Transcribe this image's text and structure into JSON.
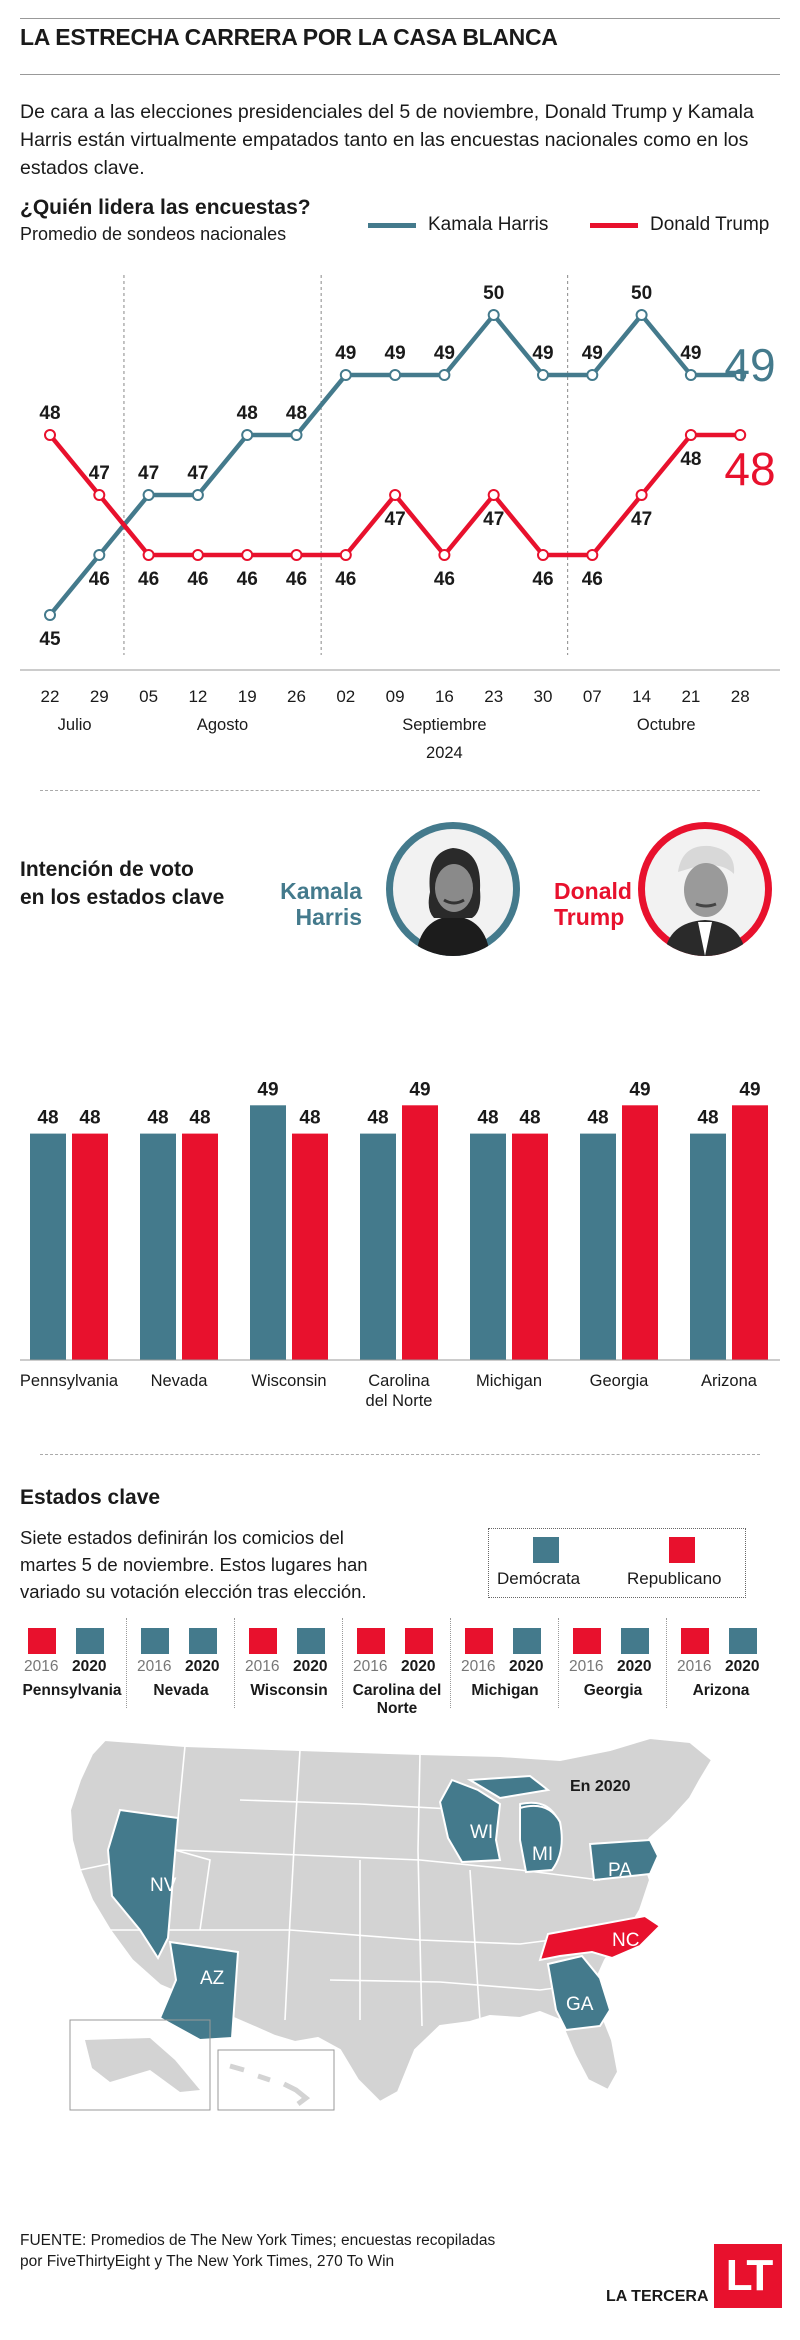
{
  "header": {
    "title": "LA ESTRECHA CARRERA POR LA CASA BLANCA",
    "intro": "De cara a las elecciones presidenciales del 5 de noviembre, Donald Trump y Kamala Harris están virtualmente empatados tanto en las encuestas nacionales como en los estados clave."
  },
  "colors": {
    "harris": "#447a8c",
    "trump": "#e8112d",
    "gray": "#d7d7d7"
  },
  "poll_section": {
    "heading": "¿Quién lidera las encuestas?",
    "subheading": "Promedio de sondeos nacionales",
    "legend_harris": "Kamala Harris",
    "legend_trump": "Donald  Trump",
    "latest_harris": "49",
    "latest_trump": "48"
  },
  "state_section": {
    "heading_line1": "Intención de voto",
    "heading_line2": "en los estados clave",
    "harris_first": "Kamala",
    "harris_last": "Harris",
    "trump_first": "Donald",
    "trump_last": "Trump"
  },
  "map_section": {
    "heading": "Estados clave",
    "description": "Siete estados definirán los comicios del martes 5 de noviembre. Estos lugares han variado su votación elección tras elección.",
    "legend_dem": "Demócrata",
    "legend_rep": "Republicano",
    "year_2016": "2016",
    "year_2020": "2020",
    "history": [
      {
        "state": "Pennsylvania",
        "y2016": "rep",
        "y2020": "dem"
      },
      {
        "state": "Nevada",
        "y2016": "dem",
        "y2020": "dem"
      },
      {
        "state": "Wisconsin",
        "y2016": "rep",
        "y2020": "dem"
      },
      {
        "state": "Carolina del Norte",
        "y2016": "rep",
        "y2020": "rep"
      },
      {
        "state": "Michigan",
        "y2016": "rep",
        "y2020": "dem"
      },
      {
        "state": "Georgia",
        "y2016": "rep",
        "y2020": "dem"
      },
      {
        "state": "Arizona",
        "y2016": "rep",
        "y2020": "dem"
      }
    ],
    "map_title": "En 2020",
    "map_labels": {
      "NV": "NV",
      "AZ": "AZ",
      "WI": "WI",
      "MI": "MI",
      "PA": "PA",
      "NC": "NC",
      "GA": "GA"
    }
  },
  "footer": {
    "source_line1": "FUENTE: Promedios de The New York Times; encuestas recopiladas",
    "source_line2": "por FiveThirtyEight y The New York Times, 270 To Win",
    "logo": "LT",
    "brand": "LA TERCERA"
  },
  "chart_data": [
    {
      "type": "line",
      "title": "¿Quién lidera las encuestas?",
      "subtitle": "Promedio de sondeos nacionales",
      "x": [
        "22",
        "29",
        "05",
        "12",
        "19",
        "26",
        "02",
        "09",
        "16",
        "23",
        "30",
        "07",
        "14",
        "21",
        "28"
      ],
      "months": [
        {
          "label": "Julio",
          "span": [
            "22",
            "29"
          ]
        },
        {
          "label": "Agosto",
          "span": [
            "05",
            "26"
          ]
        },
        {
          "label": "Septiembre",
          "span": [
            "02",
            "30"
          ]
        },
        {
          "label": "Octubre",
          "span": [
            "07",
            "28"
          ]
        }
      ],
      "year": "2024",
      "ylim": [
        44,
        51
      ],
      "series": [
        {
          "name": "Kamala Harris",
          "values": [
            45,
            46,
            47,
            47,
            48,
            48,
            49,
            49,
            49,
            50,
            49,
            49,
            50,
            49,
            49
          ]
        },
        {
          "name": "Donald Trump",
          "values": [
            48,
            47,
            46,
            46,
            46,
            46,
            46,
            47,
            46,
            47,
            46,
            46,
            47,
            48,
            48
          ]
        }
      ],
      "labels_harris": [
        "45",
        "46",
        "47",
        "47",
        "48",
        "48",
        "49",
        "49",
        "49",
        "50",
        "49",
        "49",
        "50",
        "49",
        ""
      ],
      "labels_trump": [
        "48",
        "47",
        "46",
        "46",
        "46",
        "46",
        "46",
        "47",
        "46",
        "47",
        "46",
        "46",
        "47",
        "48",
        ""
      ]
    },
    {
      "type": "bar",
      "title": "Intención de voto en los estados clave",
      "categories": [
        "Pennsylvania",
        "Nevada",
        "Wisconsin",
        "Carolina del Norte",
        "Michigan",
        "Georgia",
        "Arizona"
      ],
      "category_lines": [
        [
          "Pennsylvania"
        ],
        [
          "Nevada"
        ],
        [
          "Wisconsin"
        ],
        [
          "Carolina",
          "del Norte"
        ],
        [
          "Michigan"
        ],
        [
          "Georgia"
        ],
        [
          "Arizona"
        ]
      ],
      "series": [
        {
          "name": "Kamala Harris",
          "values": [
            48,
            48,
            49,
            48,
            48,
            48,
            48
          ]
        },
        {
          "name": "Donald Trump",
          "values": [
            48,
            48,
            48,
            49,
            48,
            49,
            49
          ]
        }
      ]
    }
  ]
}
